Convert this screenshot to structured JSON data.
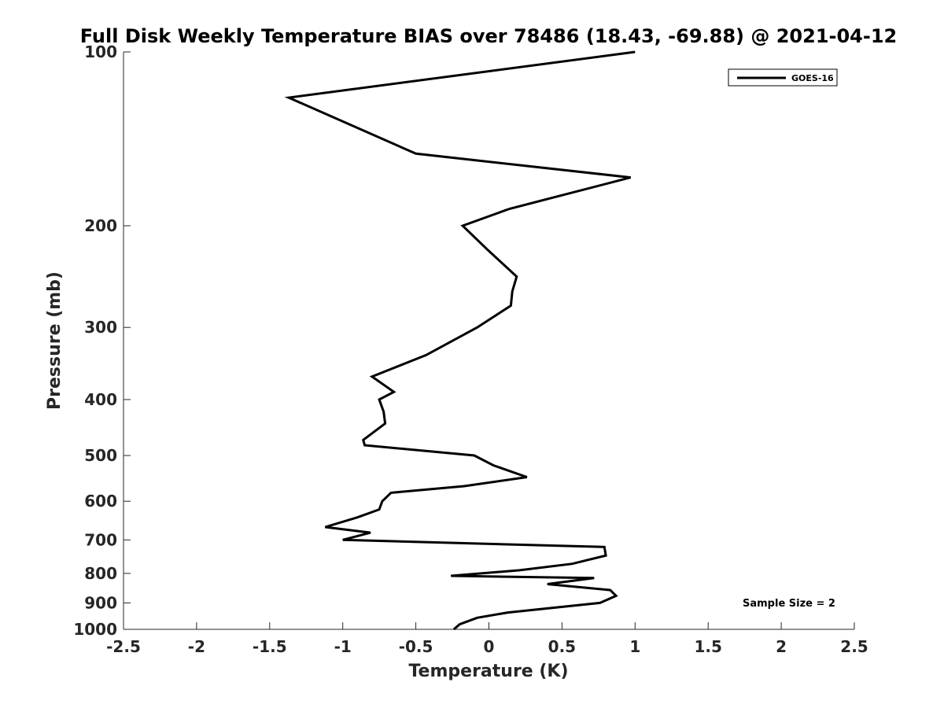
{
  "chart_data": {
    "type": "line",
    "title": "Full Disk Weekly Temperature BIAS over 78486 (18.43, -69.88) @ 2021-04-12",
    "xlabel": "Temperature (K)",
    "ylabel": "Pressure (mb)",
    "xlim": [
      -2.5,
      2.5
    ],
    "ylim": [
      100,
      1000
    ],
    "y_scale": "log",
    "y_reversed": true,
    "grid": false,
    "x_ticks": [
      -2.5,
      -2,
      -1.5,
      -1,
      -0.5,
      0,
      0.5,
      1,
      1.5,
      2,
      2.5
    ],
    "x_tick_labels": [
      "-2.5",
      "-2",
      "-1.5",
      "-1",
      "-0.5",
      "0",
      "0.5",
      "1",
      "1.5",
      "2",
      "2.5"
    ],
    "y_ticks": [
      100,
      200,
      300,
      400,
      500,
      600,
      700,
      800,
      900,
      1000
    ],
    "y_tick_labels": [
      "100",
      "200",
      "300",
      "400",
      "500",
      "600",
      "700",
      "800",
      "900",
      "1000"
    ],
    "legend": {
      "position": "top-right",
      "entries": [
        "GOES-16"
      ]
    },
    "annotation": "Sample Size = 2",
    "series": [
      {
        "name": "GOES-16",
        "color": "#000000",
        "x": [
          1.0,
          -1.37,
          -0.5,
          0.97,
          0.14,
          -0.18,
          -0.01,
          0.19,
          0.16,
          0.15,
          -0.08,
          -0.43,
          -0.8,
          -0.65,
          -0.75,
          -0.72,
          -0.71,
          -0.86,
          -0.85,
          -0.1,
          0.03,
          0.26,
          -0.17,
          -0.67,
          -0.73,
          -0.75,
          -0.9,
          -1.12,
          -0.81,
          -1.0,
          0.79,
          0.8,
          0.57,
          0.21,
          -0.26,
          0.72,
          0.4,
          0.83,
          0.87,
          0.76,
          0.13,
          -0.08,
          -0.2,
          -0.24
        ],
        "y": [
          100,
          120,
          150,
          165,
          187,
          200,
          220,
          245,
          260,
          275,
          300,
          335,
          365,
          388,
          400,
          420,
          440,
          470,
          480,
          500,
          520,
          545,
          565,
          580,
          600,
          620,
          640,
          665,
          680,
          700,
          720,
          745,
          770,
          790,
          808,
          815,
          835,
          855,
          875,
          900,
          935,
          955,
          980,
          1000
        ]
      }
    ]
  }
}
